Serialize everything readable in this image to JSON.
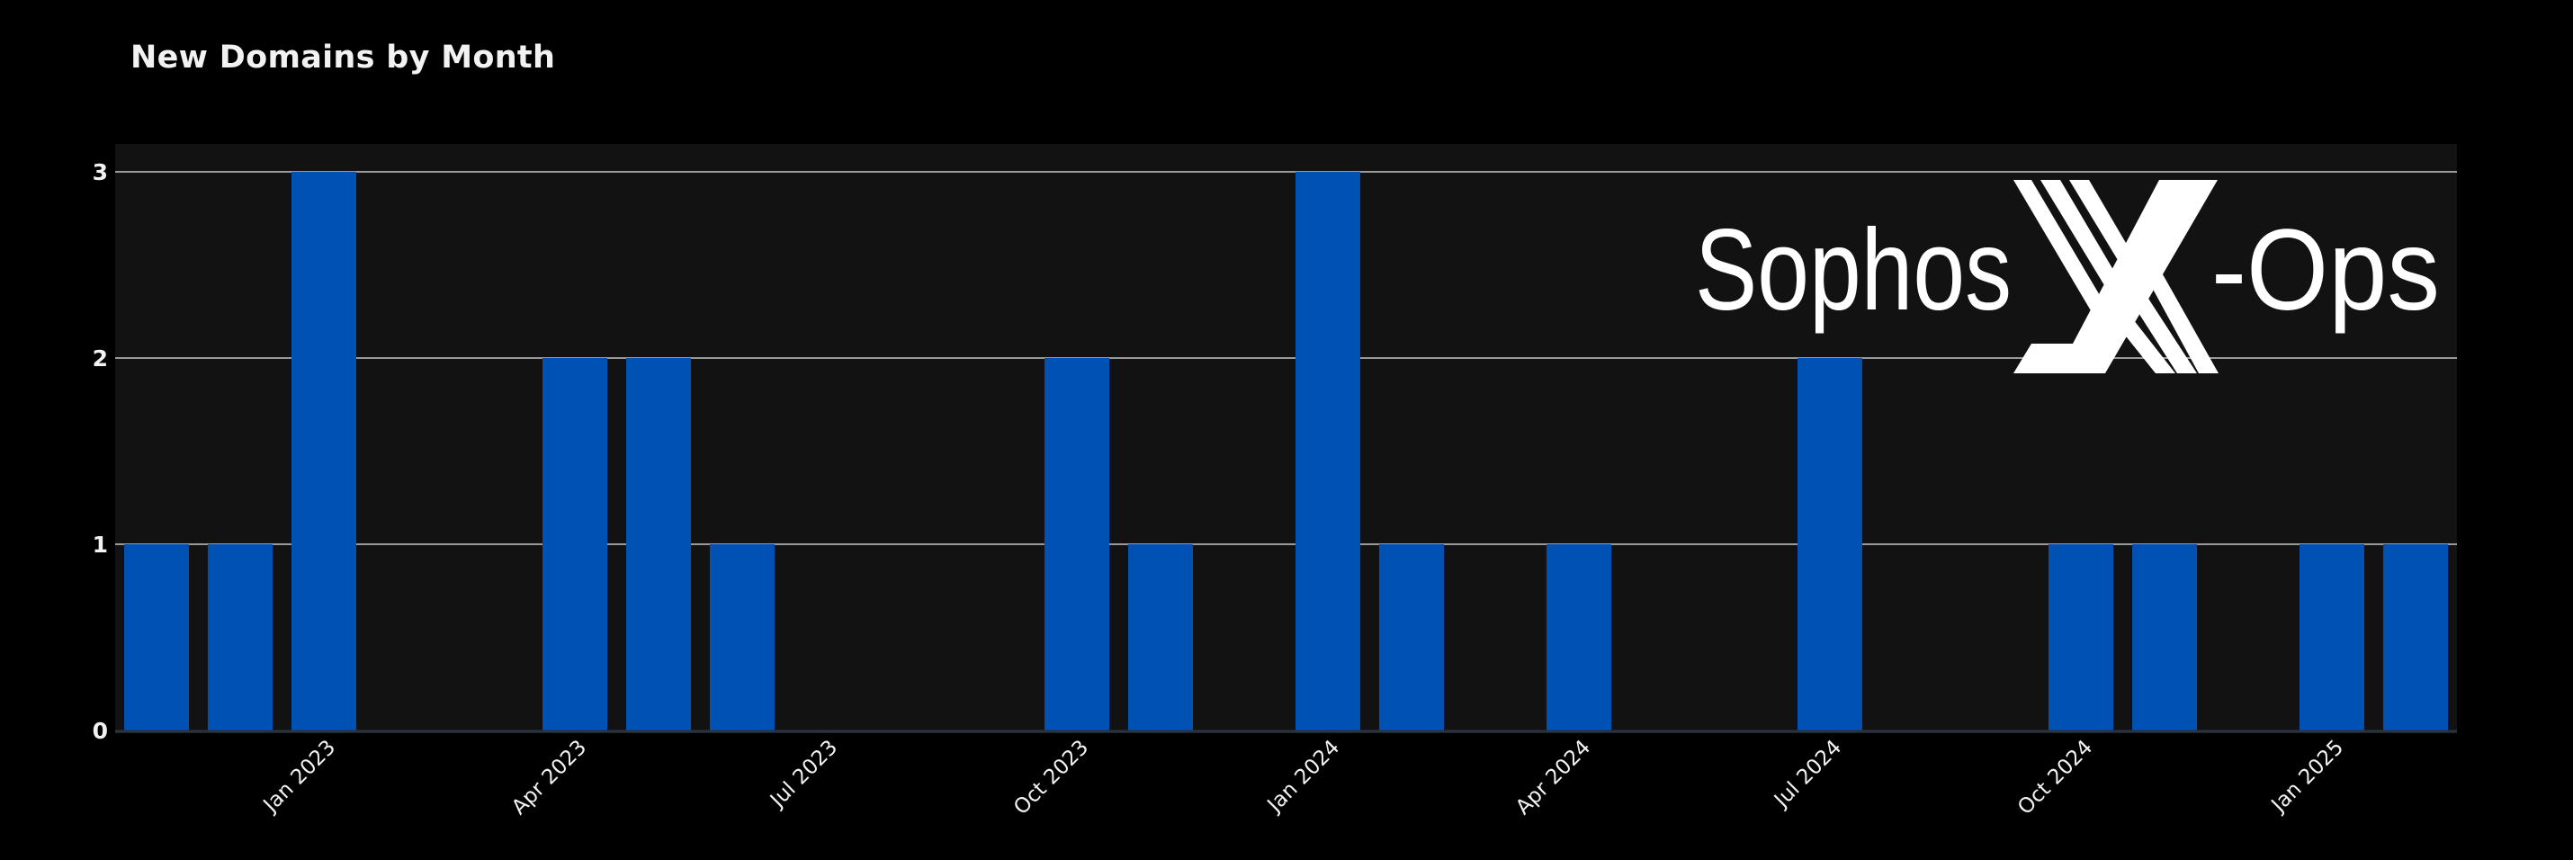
{
  "chart_data": {
    "type": "bar",
    "title": "New Domains by Month",
    "xlabel": "",
    "ylabel": "",
    "categories": [
      "Nov 2022",
      "Dec 2022",
      "Jan 2023",
      "Feb 2023",
      "Mar 2023",
      "Apr 2023",
      "May 2023",
      "Jun 2023",
      "Jul 2023",
      "Aug 2023",
      "Sep 2023",
      "Oct 2023",
      "Nov 2023",
      "Dec 2023",
      "Jan 2024",
      "Feb 2024",
      "Mar 2024",
      "Apr 2024",
      "May 2024",
      "Jun 2024",
      "Jul 2024",
      "Aug 2024",
      "Sep 2024",
      "Oct 2024",
      "Nov 2024",
      "Dec 2024",
      "Jan 2025",
      "Feb 2025"
    ],
    "values": [
      1,
      1,
      3,
      0,
      0,
      2,
      2,
      1,
      0,
      0,
      0,
      2,
      1,
      0,
      3,
      1,
      0,
      1,
      0,
      0,
      2,
      0,
      0,
      1,
      1,
      0,
      1,
      1
    ],
    "ylim": [
      0,
      3.15
    ],
    "yticks": [
      "0",
      "1",
      "2",
      "3"
    ],
    "xticks": [
      {
        "label": "Jan 2023",
        "category": "Jan 2023"
      },
      {
        "label": "Apr 2023",
        "category": "Apr 2023"
      },
      {
        "label": "Jul 2023",
        "category": "Jul 2023"
      },
      {
        "label": "Oct 2023",
        "category": "Oct 2023"
      },
      {
        "label": "Jan 2024",
        "category": "Jan 2024"
      },
      {
        "label": "Apr 2024",
        "category": "Apr 2024"
      },
      {
        "label": "Jul 2024",
        "category": "Jul 2024"
      },
      {
        "label": "Oct 2024",
        "category": "Oct 2024"
      },
      {
        "label": "Jan 2025",
        "category": "Jan 2025"
      }
    ],
    "grid": true,
    "colors": {
      "bar": "#0051b4",
      "plot_bg": "#121212",
      "page_bg": "#000000",
      "grid": "#9a9a9a",
      "axis": "#2a3440",
      "text": "#f2f2f2"
    }
  },
  "logo": {
    "text_left": "Sophos",
    "text_right": "-Ops",
    "mark": "X"
  }
}
